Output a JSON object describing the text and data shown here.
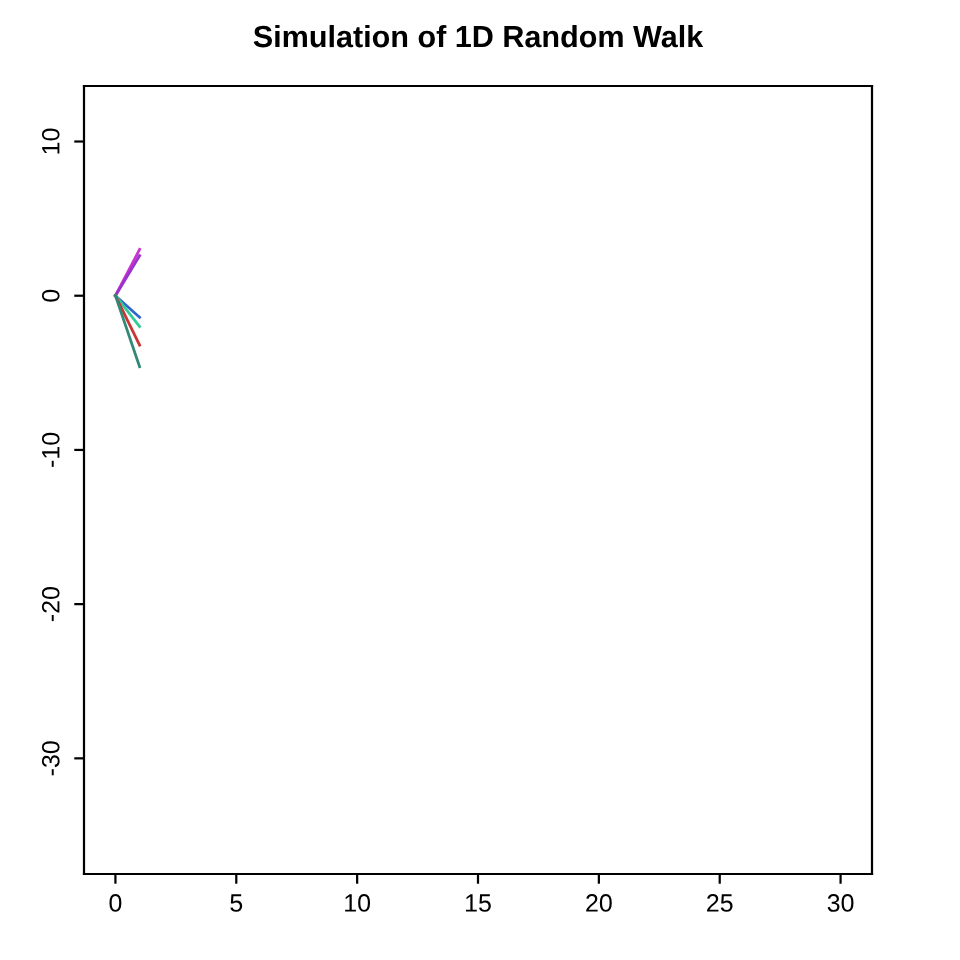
{
  "chart_data": {
    "type": "line",
    "title": "Simulation of 1D Random Walk",
    "x": [
      0,
      1
    ],
    "series": [
      {
        "color": "#cc33cc",
        "values": [
          0,
          3.0
        ]
      },
      {
        "color": "#9933cc",
        "values": [
          0,
          2.6
        ]
      },
      {
        "color": "#3366cc",
        "values": [
          0,
          -1.4
        ]
      },
      {
        "color": "#33cc99",
        "values": [
          0,
          -2.0
        ]
      },
      {
        "color": "#cc3333",
        "values": [
          0,
          -3.2
        ]
      },
      {
        "color": "#338877",
        "values": [
          0,
          -4.6
        ]
      }
    ],
    "xlim": [
      -1.3,
      31.3
    ],
    "ylim": [
      -37.5,
      13.6
    ],
    "xticks": [
      0,
      5,
      10,
      15,
      20,
      25,
      30
    ],
    "yticks": [
      -30,
      -20,
      -10,
      0,
      10
    ],
    "grid": false,
    "legend": false
  }
}
